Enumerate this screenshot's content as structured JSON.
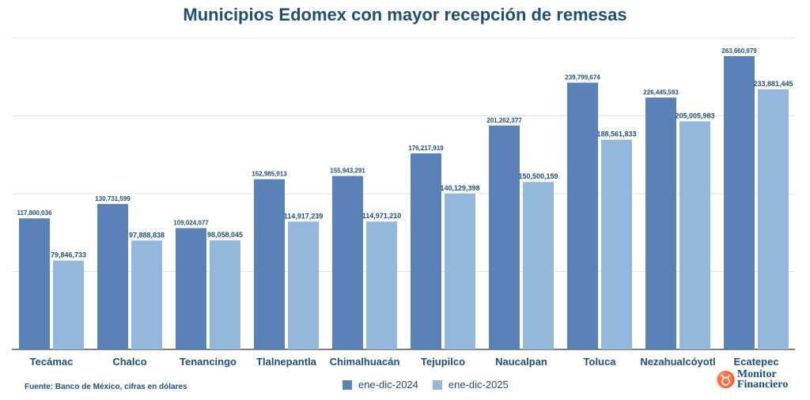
{
  "chart_data": {
    "type": "bar",
    "title": "Municipios Edomex con mayor recepción de remesas",
    "categories": [
      "Tecámac",
      "Chalco",
      "Tenancingo",
      "Tlalnepantla",
      "Chimalhuacán",
      "Tejupilco",
      "Naucalpan",
      "Toluca",
      "Nezahualcóyotl",
      "Ecatepec"
    ],
    "series": [
      {
        "name": "ene-dic-2024",
        "color": "#5b82b6",
        "values": [
          117800036,
          130731599,
          109024077,
          152985913,
          155943291,
          176217919,
          201262377,
          239799674,
          226445593,
          263660079
        ],
        "labels": [
          "117,800,036",
          "130,731,599",
          "109,024,077",
          "152,985,913",
          "155,943,291",
          "176,217,919",
          "201,262,377",
          "239,799,674",
          "226,445,593",
          "263,660,079"
        ]
      },
      {
        "name": "ene-dic-2025",
        "color": "#94b8dc",
        "values": [
          79846733,
          97888838,
          98058045,
          114917239,
          114971210,
          140129398,
          150500159,
          188561833,
          205005983,
          233881445
        ],
        "labels": [
          "79,846,733",
          "97,888,838",
          "98,058,045",
          "114,917,239",
          "114,971,210",
          "140,129,398",
          "150,500,159",
          "188,561,833",
          "205,005,983",
          "233,881,445"
        ]
      }
    ],
    "xlabel": "",
    "ylabel": "",
    "ylim": [
      0,
      280000000
    ],
    "grid": true,
    "y_tick_labels_shown": false,
    "legend": "bottom"
  },
  "source": "Fuente: Banco de México, cifras en dólares",
  "logo": {
    "line1": "Monitor",
    "line2": "Financiero"
  }
}
